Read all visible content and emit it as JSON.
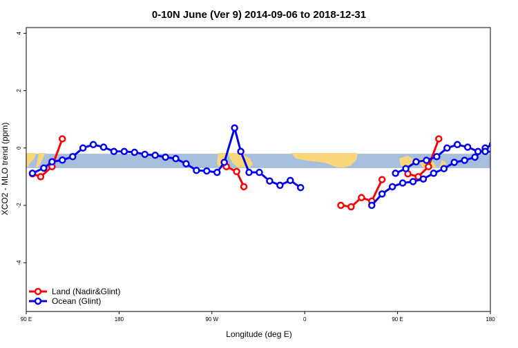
{
  "chart_data": {
    "type": "line",
    "title": "0-10N June (Ver 9)   2014-09-06 to 2018-12-31",
    "xlabel": "Longitude (deg E)",
    "ylabel": "XCO2 - MLO trend (ppm)",
    "xlim": [
      90,
      540
    ],
    "ylim": [
      -5.7,
      4.2
    ],
    "x_ticks": [
      {
        "value": 90,
        "label": "90 E"
      },
      {
        "value": 180,
        "label": "180"
      },
      {
        "value": 270,
        "label": "90 W"
      },
      {
        "value": 360,
        "label": "0"
      },
      {
        "value": 450,
        "label": "90 E"
      },
      {
        "value": 540,
        "label": "180"
      }
    ],
    "y_ticks": [
      {
        "value": 4,
        "label": "4"
      },
      {
        "value": 2,
        "label": "2"
      },
      {
        "value": 0,
        "label": "0"
      },
      {
        "value": -2,
        "label": "-2"
      },
      {
        "value": -4,
        "label": "-4"
      }
    ],
    "grid": false,
    "legend_position": "bottom-left",
    "map_band": {
      "y_top": -0.2,
      "y_bottom": -0.7,
      "ocean_color": "#a8bedd",
      "land_color": "#f9d67a"
    },
    "series": [
      {
        "name": "Land (Nadir&Glint)",
        "color": "#ff0000",
        "segments": [
          {
            "x": [
              96,
              104,
              115,
              125
            ],
            "y": [
              -0.9,
              -1.0,
              -0.65,
              0.32
            ]
          },
          {
            "x": [
              284,
              294,
              301
            ],
            "y": [
              -0.65,
              -0.82,
              -1.35
            ]
          },
          {
            "x": [
              395,
              405,
              415,
              425,
              435
            ],
            "y": [
              -2.0,
              -2.05,
              -1.73,
              -1.85,
              -1.1
            ]
          },
          {
            "x": [
              460,
              470,
              480,
              490
            ],
            "y": [
              -0.9,
              -1.0,
              -0.65,
              0.32
            ]
          }
        ]
      },
      {
        "name": "Ocean (Glint)",
        "color": "#0000ee",
        "segments": [
          {
            "x": [
              96,
              107,
              115,
              125,
              135,
              145,
              155,
              165,
              175,
              185,
              195,
              205,
              215,
              225,
              235,
              245,
              255,
              265,
              275,
              282,
              292,
              298,
              306,
              316,
              326,
              336,
              346,
              356
            ],
            "y": [
              -0.88,
              -0.7,
              -0.48,
              -0.42,
              -0.3,
              0.0,
              0.12,
              0.03,
              -0.12,
              -0.12,
              -0.15,
              -0.22,
              -0.25,
              -0.32,
              -0.37,
              -0.55,
              -0.78,
              -0.8,
              -0.85,
              -0.5,
              0.7,
              -0.12,
              -0.85,
              -0.85,
              -1.15,
              -1.3,
              -1.13,
              -1.38
            ]
          },
          {
            "x": [
              425,
              435,
              445,
              455,
              465,
              475,
              485,
              495,
              505,
              515,
              525,
              535,
              542
            ],
            "y": [
              -2.0,
              -1.6,
              -1.35,
              -1.22,
              -1.17,
              -1.08,
              -0.88,
              -0.72,
              -0.5,
              -0.43,
              -0.32,
              0.0,
              0.12
            ]
          },
          {
            "x": [
              448,
              458,
              468,
              478,
              488,
              498,
              508,
              518,
              528,
              535,
              545,
              555,
              565
            ],
            "y": [
              -0.88,
              -0.72,
              -0.48,
              -0.43,
              -0.3,
              0.0,
              0.12,
              0.03,
              -0.12,
              -0.12,
              -0.15,
              -0.22,
              -0.25
            ]
          }
        ]
      }
    ]
  }
}
